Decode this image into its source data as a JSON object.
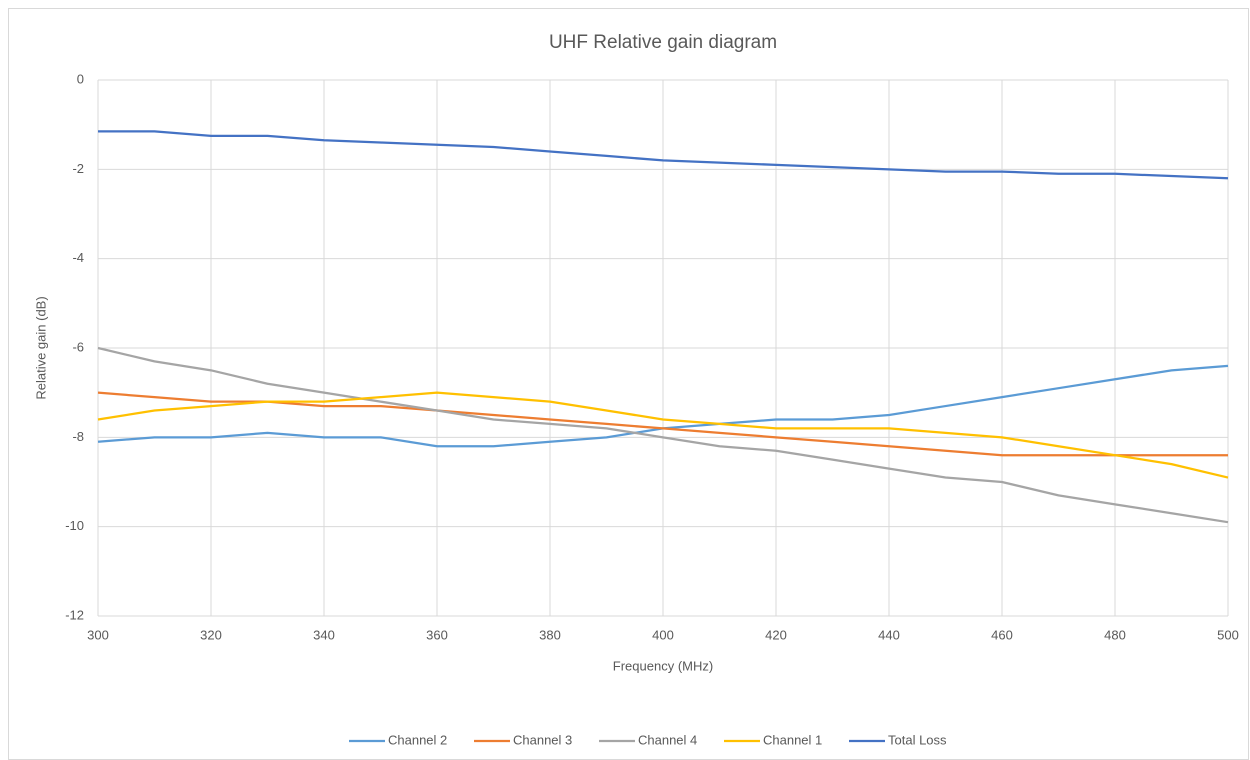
{
  "chart_data": {
    "type": "line",
    "title": "UHF Relative gain diagram",
    "x_label": "Frequency (MHz)",
    "y_label": "Relative gain (dB)",
    "x": [
      300,
      310,
      320,
      330,
      340,
      350,
      360,
      370,
      380,
      390,
      400,
      410,
      420,
      430,
      440,
      450,
      460,
      470,
      480,
      490,
      500
    ],
    "series": [
      {
        "name": "Channel 2",
        "color": "#5b9bd5",
        "values": [
          -8.1,
          -8.0,
          -8.0,
          -7.9,
          -8.0,
          -8.0,
          -8.2,
          -8.2,
          -8.1,
          -8.0,
          -7.8,
          -7.7,
          -7.6,
          -7.6,
          -7.5,
          -7.3,
          -7.1,
          -6.9,
          -6.7,
          -6.5,
          -6.4
        ]
      },
      {
        "name": "Channel 3",
        "color": "#ed7d31",
        "values": [
          -7.0,
          -7.1,
          -7.2,
          -7.2,
          -7.3,
          -7.3,
          -7.4,
          -7.5,
          -7.6,
          -7.7,
          -7.8,
          -7.9,
          -8.0,
          -8.1,
          -8.2,
          -8.3,
          -8.4,
          -8.4,
          -8.4,
          -8.4,
          -8.4
        ]
      },
      {
        "name": "Channel 4",
        "color": "#a5a5a5",
        "values": [
          -6.0,
          -6.3,
          -6.5,
          -6.8,
          -7.0,
          -7.2,
          -7.4,
          -7.6,
          -7.7,
          -7.8,
          -8.0,
          -8.2,
          -8.3,
          -8.5,
          -8.7,
          -8.9,
          -9.0,
          -9.3,
          -9.5,
          -9.7,
          -9.9
        ]
      },
      {
        "name": "Channel 1",
        "color": "#ffc000",
        "values": [
          -7.6,
          -7.4,
          -7.3,
          -7.2,
          -7.2,
          -7.1,
          -7.0,
          -7.1,
          -7.2,
          -7.4,
          -7.6,
          -7.7,
          -7.8,
          -7.8,
          -7.8,
          -7.9,
          -8.0,
          -8.2,
          -8.4,
          -8.6,
          -8.9
        ]
      },
      {
        "name": "Total Loss",
        "color": "#4472c4",
        "values": [
          -1.15,
          -1.15,
          -1.25,
          -1.25,
          -1.35,
          -1.4,
          -1.45,
          -1.5,
          -1.6,
          -1.7,
          -1.8,
          -1.85,
          -1.9,
          -1.95,
          -2.0,
          -2.05,
          -2.05,
          -2.1,
          -2.1,
          -2.15,
          -2.2
        ]
      }
    ],
    "xlim": [
      300,
      500
    ],
    "xticks": [
      300,
      320,
      340,
      360,
      380,
      400,
      420,
      440,
      460,
      480,
      500
    ],
    "ylim": [
      -12,
      0
    ],
    "yticks": [
      0,
      -2,
      -4,
      -6,
      -8,
      -10,
      -12
    ],
    "grid": true,
    "legend": "bottom"
  }
}
